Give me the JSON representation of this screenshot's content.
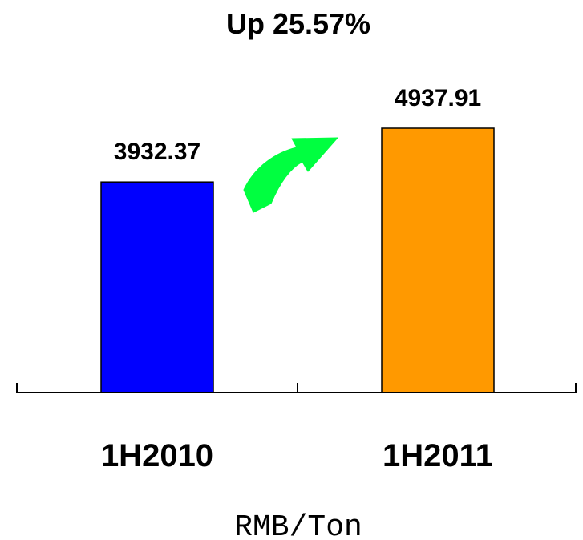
{
  "chart_data": {
    "type": "bar",
    "title": "Up 25.57%",
    "categories": [
      "1H2010",
      "1H2011"
    ],
    "values": [
      3932.37,
      4937.91
    ],
    "value_labels": [
      "3932.37",
      "4937.91"
    ],
    "colors": [
      "#0000ff",
      "#ff9900"
    ],
    "xlabel": "RMB/Ton",
    "ylabel": "",
    "grid": false,
    "legend": "none",
    "annotation": {
      "type": "arrow",
      "icon": "curved-up-arrow-icon",
      "color": "#00ff40"
    }
  }
}
